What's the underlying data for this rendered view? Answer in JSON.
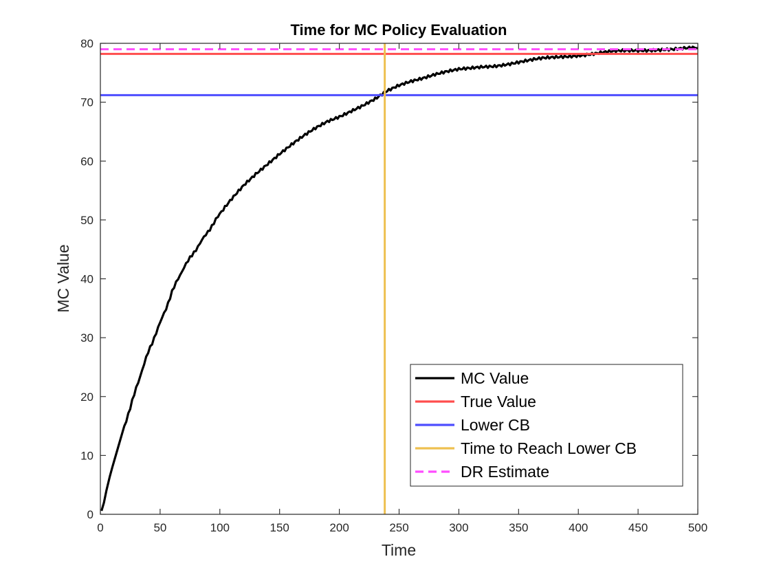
{
  "chart_data": {
    "type": "line",
    "title": "Time for MC Policy Evaluation",
    "xlabel": "Time",
    "ylabel": "MC Value",
    "xlim": [
      0,
      500
    ],
    "ylim": [
      0,
      80
    ],
    "xticks": [
      0,
      50,
      100,
      150,
      200,
      250,
      300,
      350,
      400,
      450,
      500
    ],
    "yticks": [
      0,
      10,
      20,
      30,
      40,
      50,
      60,
      70,
      80
    ],
    "grid": false,
    "legend_position": "bottom-right",
    "series": [
      {
        "name": "MC Value",
        "kind": "curve",
        "color": "#000000",
        "style": "solid",
        "x": [
          1,
          3,
          5,
          8,
          10,
          15,
          20,
          25,
          30,
          35,
          40,
          45,
          50,
          55,
          60,
          65,
          70,
          75,
          80,
          85,
          90,
          95,
          100,
          110,
          120,
          130,
          140,
          150,
          160,
          170,
          180,
          190,
          200,
          210,
          220,
          230,
          240,
          250,
          260,
          270,
          280,
          290,
          300,
          310,
          320,
          330,
          340,
          350,
          360,
          370,
          380,
          390,
          400,
          410,
          420,
          430,
          440,
          450,
          460,
          470,
          480,
          490,
          500
        ],
        "y": [
          0.6,
          2.0,
          4.0,
          6.5,
          8.0,
          11.5,
          15.0,
          18.0,
          21.5,
          24.5,
          27.5,
          30.0,
          32.5,
          35.0,
          37.8,
          40.0,
          42.0,
          43.5,
          45.0,
          46.5,
          48.0,
          49.5,
          51.0,
          53.5,
          55.8,
          57.8,
          59.6,
          61.3,
          62.8,
          64.2,
          65.5,
          66.7,
          67.6,
          68.6,
          69.5,
          70.5,
          71.8,
          72.8,
          73.6,
          74.2,
          74.8,
          75.2,
          75.5,
          75.7,
          76.0,
          76.2,
          76.5,
          76.8,
          77.1,
          77.4,
          77.6,
          77.8,
          78.0,
          78.2,
          78.4,
          78.6,
          78.7,
          78.8,
          78.9,
          79.0,
          79.0,
          79.1,
          79.2
        ]
      },
      {
        "name": "True Value",
        "kind": "hline",
        "value": 78.2,
        "color": "#ff4d4d",
        "style": "solid"
      },
      {
        "name": "Lower CB",
        "kind": "hline",
        "value": 71.2,
        "color": "#4d4dff",
        "style": "solid"
      },
      {
        "name": "Time to Reach Lower CB",
        "kind": "vline",
        "value": 238,
        "color": "#eec050",
        "style": "solid"
      },
      {
        "name": "DR Estimate",
        "kind": "hline",
        "value": 79.0,
        "color": "#ff4dff",
        "style": "dashed"
      }
    ]
  }
}
